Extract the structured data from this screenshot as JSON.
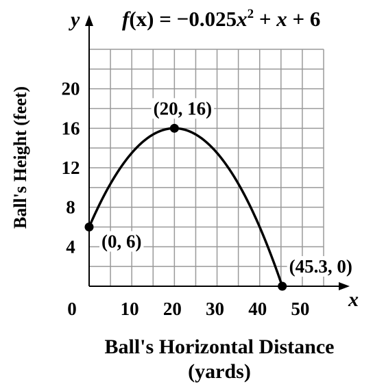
{
  "chart_data": {
    "type": "line",
    "function_label": {
      "lhs_name": "f",
      "lhs_arg": "(x)",
      "equals": " = −0.025",
      "var1": "x",
      "exp": "2",
      "plus1": " + ",
      "var2": "x",
      "tail": " + 6"
    },
    "xlabel_line1": "Ball's Horizontal Distance",
    "xlabel_line2": "(yards)",
    "ylabel": "Ball's Height (feet)",
    "x_axis_name": "x",
    "y_axis_name": "y",
    "xlim": [
      0,
      55
    ],
    "ylim": [
      0,
      24
    ],
    "x_ticks": [
      0,
      10,
      20,
      30,
      40,
      50
    ],
    "y_ticks": [
      4,
      8,
      12,
      16,
      20
    ],
    "x_tick_labels": [
      "0",
      "10",
      "20",
      "30",
      "40",
      "50"
    ],
    "y_tick_labels": [
      "4",
      "8",
      "12",
      "16",
      "20"
    ],
    "grid": true,
    "curve": {
      "a": -0.025,
      "b": 1,
      "c": 6,
      "x_start": 0,
      "x_end": 45.3
    },
    "points": [
      {
        "x": 0,
        "y": 6,
        "label": "(0, 6)"
      },
      {
        "x": 20,
        "y": 16,
        "label": "(20, 16)"
      },
      {
        "x": 45.3,
        "y": 0,
        "label": "(45.3, 0)"
      }
    ],
    "colors": {
      "curve": "#000000",
      "grid": "#999999",
      "axis": "#000000"
    }
  }
}
